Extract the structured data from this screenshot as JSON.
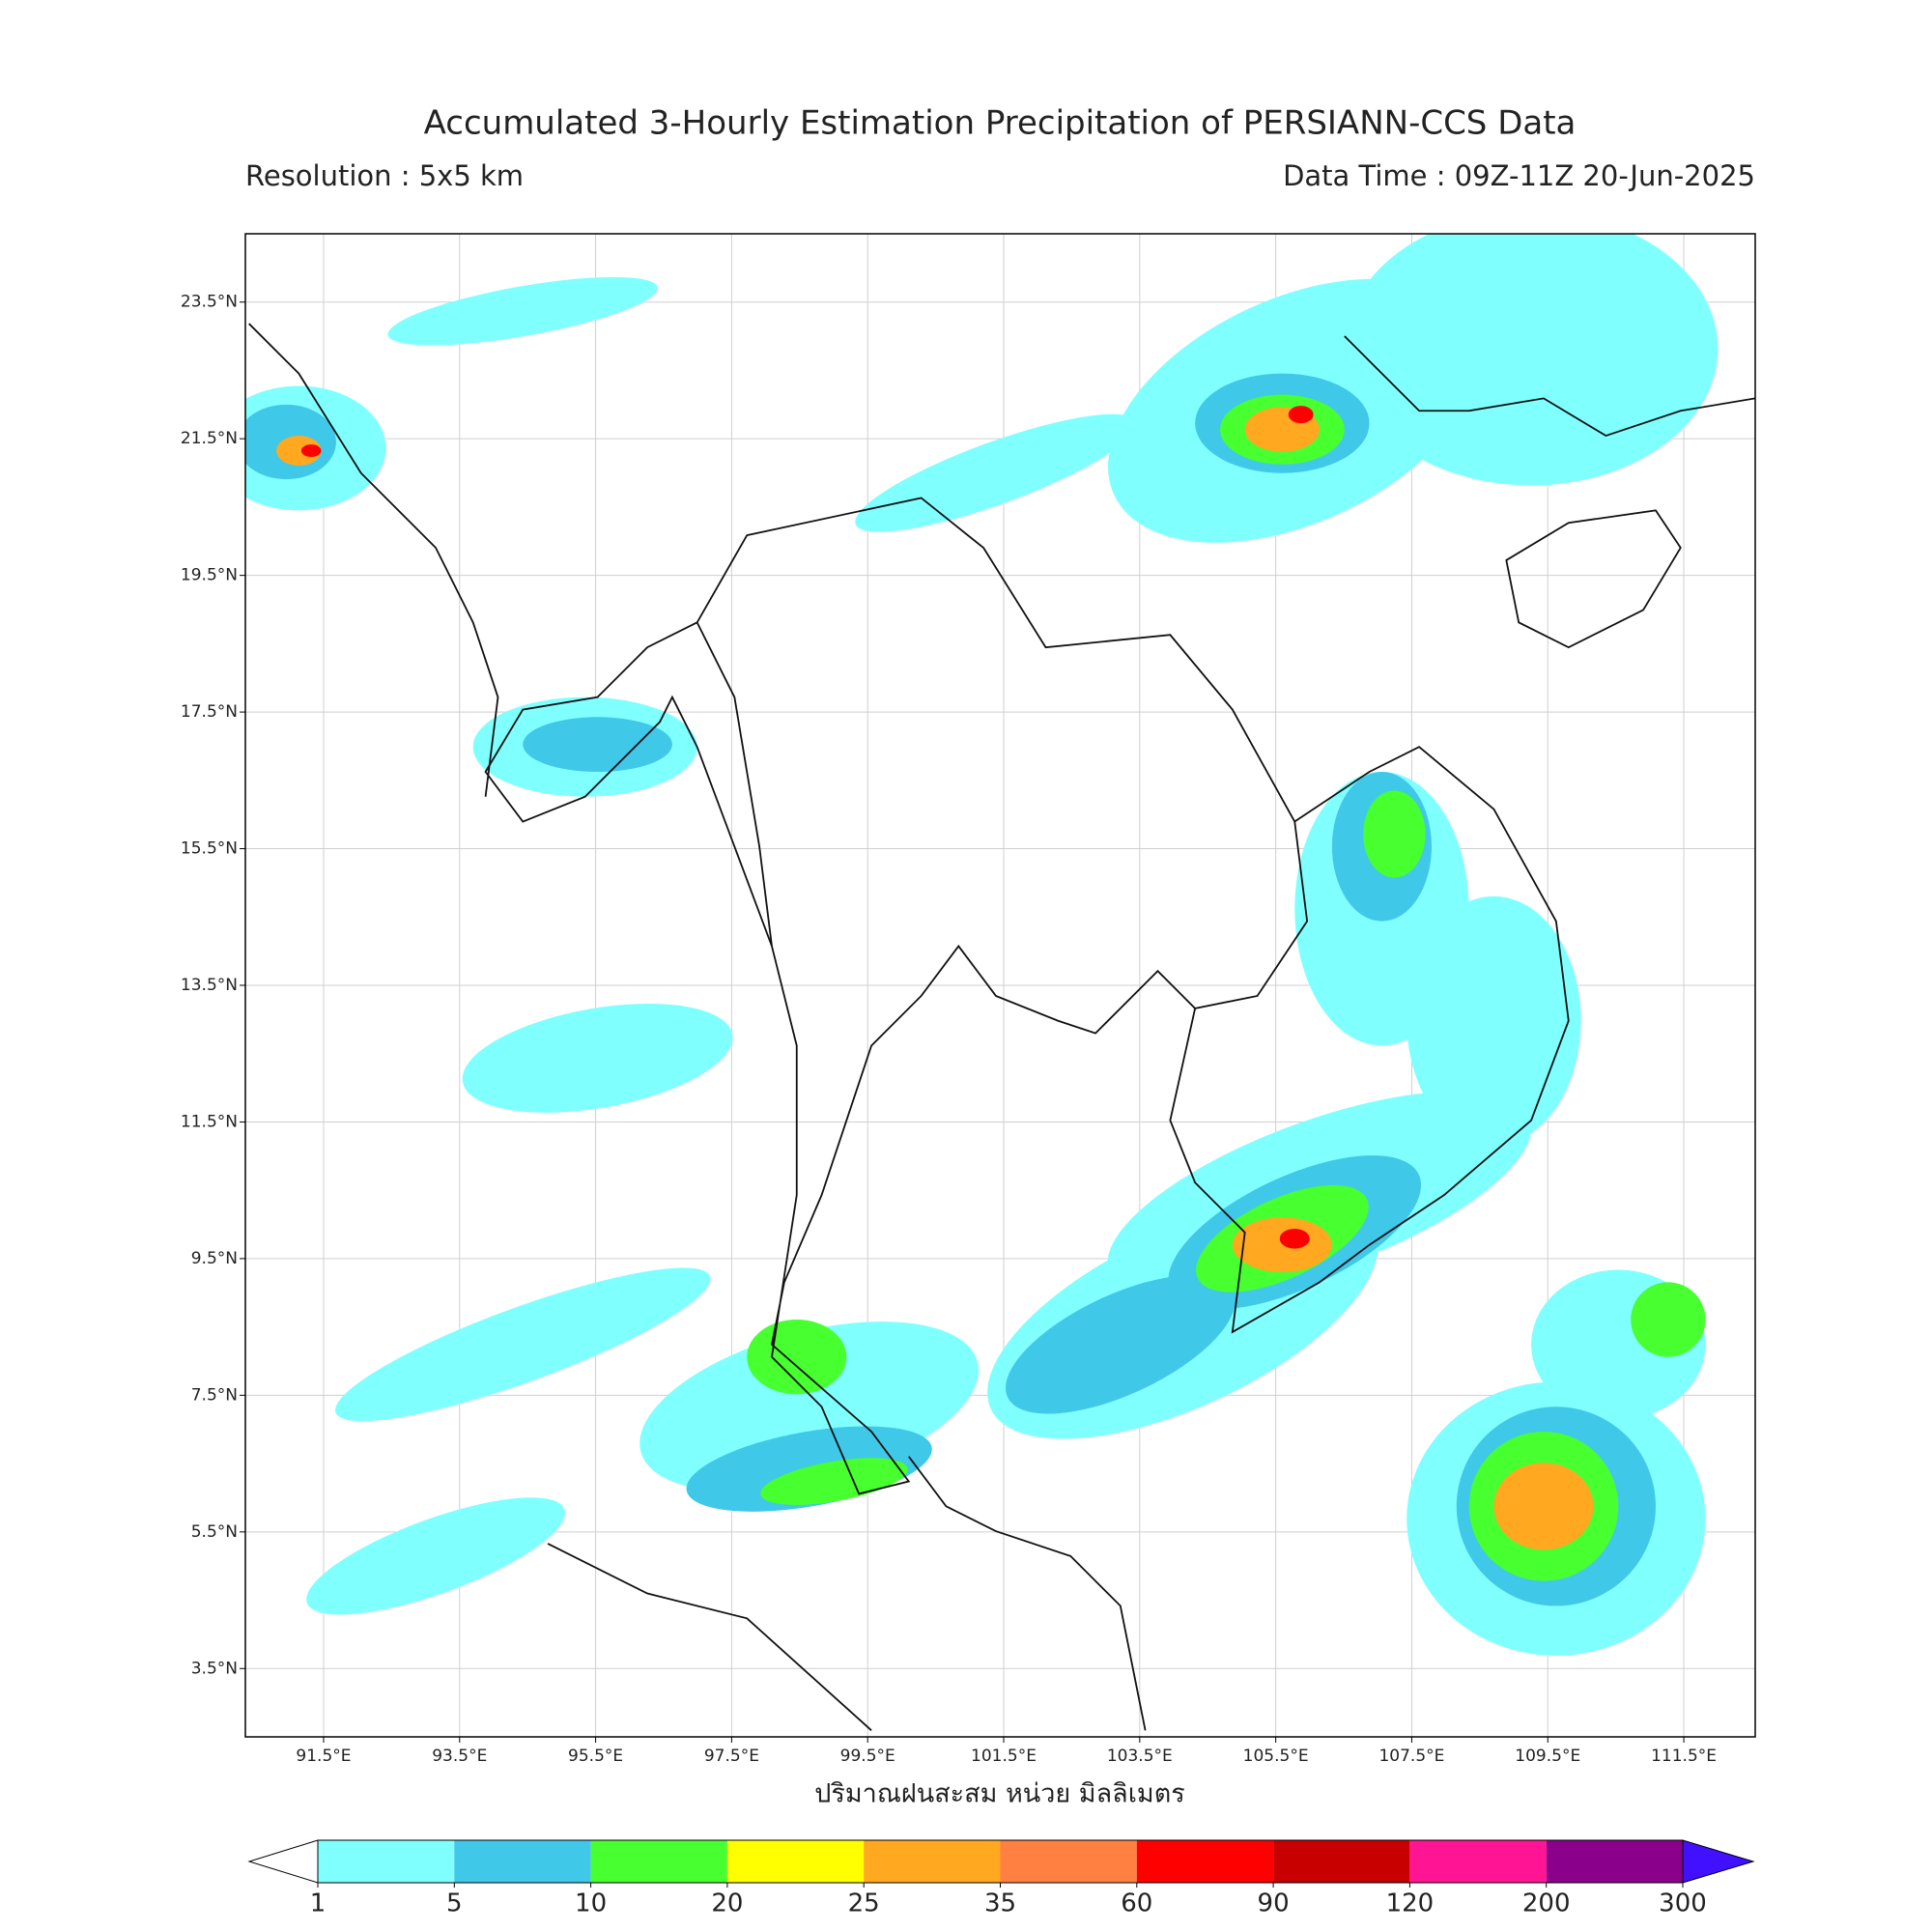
{
  "title": "Accumulated 3-Hourly Estimation Precipitation of PERSIANN-CCS Data",
  "resolution": "Resolution : 5x5 km",
  "data_time": "Data Time : 09Z-11Z 20-Jun-2025",
  "map": {
    "xlim": [
      90.35,
      112.55
    ],
    "ylim": [
      2.5,
      24.5
    ],
    "xticks": [
      {
        "value": 91.5,
        "label": "91.5°E"
      },
      {
        "value": 93.5,
        "label": "93.5°E"
      },
      {
        "value": 95.5,
        "label": "95.5°E"
      },
      {
        "value": 97.5,
        "label": "97.5°E"
      },
      {
        "value": 99.5,
        "label": "99.5°E"
      },
      {
        "value": 101.5,
        "label": "101.5°E"
      },
      {
        "value": 103.5,
        "label": "103.5°E"
      },
      {
        "value": 105.5,
        "label": "105.5°E"
      },
      {
        "value": 107.5,
        "label": "107.5°E"
      },
      {
        "value": 109.5,
        "label": "109.5°E"
      },
      {
        "value": 111.5,
        "label": "111.5°E"
      }
    ],
    "yticks": [
      {
        "value": 23.5,
        "label": "23.5°N"
      },
      {
        "value": 21.5,
        "label": "21.5°N"
      },
      {
        "value": 19.5,
        "label": "19.5°N"
      },
      {
        "value": 17.5,
        "label": "17.5°N"
      },
      {
        "value": 15.5,
        "label": "15.5°N"
      },
      {
        "value": 13.5,
        "label": "13.5°N"
      },
      {
        "value": 11.5,
        "label": "11.5°N"
      },
      {
        "value": 9.5,
        "label": "9.5°N"
      },
      {
        "value": 7.5,
        "label": "7.5°N"
      },
      {
        "value": 5.5,
        "label": "5.5°N"
      },
      {
        "value": 3.5,
        "label": "3.5°N"
      }
    ],
    "grid": true,
    "xlabel": "ปริมาณฝนสะสม หน่วย มิลลิเมตร"
  },
  "colorbar": {
    "bounds": [
      1,
      5,
      10,
      20,
      25,
      35,
      60,
      90,
      120,
      200,
      300
    ],
    "colors": [
      "#80ffff",
      "#40c8e8",
      "#48ff30",
      "#ffff00",
      "#ffa820",
      "#ff8040",
      "#ff0000",
      "#c80000",
      "#ff1493",
      "#8b008b"
    ],
    "under_color": "#ffffff",
    "over_color": "#4010ff"
  }
}
